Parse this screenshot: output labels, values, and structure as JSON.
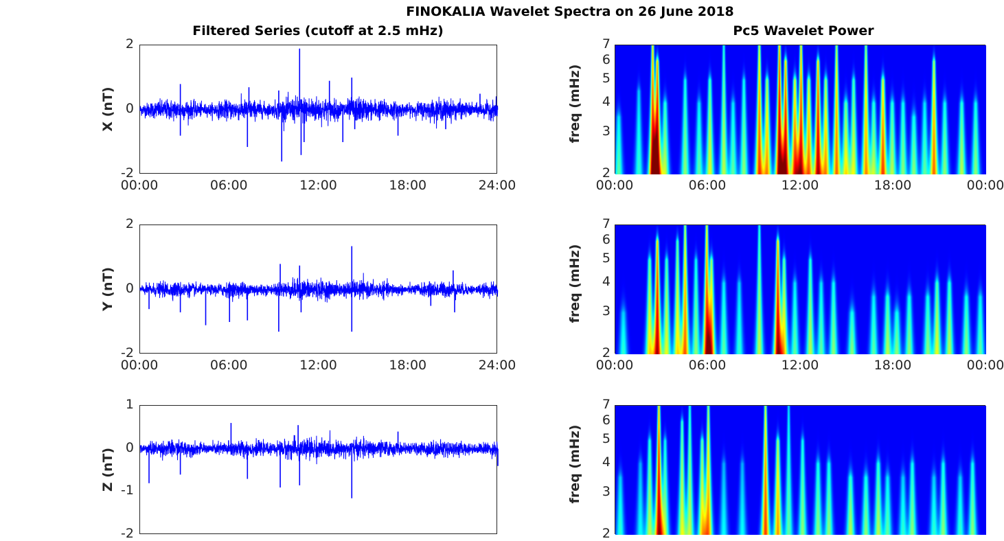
{
  "title": "FINOKALIA Wavelet Spectra on 26 June 2018",
  "chart_data": [
    {
      "type": "line",
      "title": "Filtered Series (cutoff at 2.5 mHz)",
      "ylabel": "X (nT)",
      "ylim": [
        -2,
        2
      ],
      "yticks": [
        "2",
        "0",
        "-2"
      ],
      "xlim": [
        0,
        24
      ],
      "xticks": [
        "00:00",
        "06:00",
        "12:00",
        "18:00",
        "24:00"
      ],
      "color": "#0000ff",
      "noise_amplitude_nT": 0.2,
      "spikes": [
        [
          2.7,
          0.8
        ],
        [
          2.7,
          -0.8
        ],
        [
          7.2,
          -1.15
        ],
        [
          7.3,
          0.7
        ],
        [
          9.3,
          0.6
        ],
        [
          9.5,
          -1.6
        ],
        [
          10.7,
          1.9
        ],
        [
          10.8,
          -1.4
        ],
        [
          11.0,
          -1.0
        ],
        [
          12.7,
          0.9
        ],
        [
          13.6,
          -1.0
        ],
        [
          14.2,
          1.0
        ],
        [
          14.4,
          -0.6
        ],
        [
          17.3,
          -0.8
        ],
        [
          20.5,
          -0.6
        ],
        [
          22.8,
          0.5
        ]
      ]
    },
    {
      "type": "line",
      "ylabel": "Y (nT)",
      "ylim": [
        -2,
        2
      ],
      "yticks": [
        "2",
        "0",
        "-2"
      ],
      "xlim": [
        0,
        24
      ],
      "xticks": [
        "00:00",
        "06:00",
        "12:00",
        "18:00",
        "24:00"
      ],
      "color": "#0000ff",
      "noise_amplitude_nT": 0.15,
      "spikes": [
        [
          0.6,
          -0.6
        ],
        [
          2.7,
          -0.7
        ],
        [
          4.4,
          -1.1
        ],
        [
          6.0,
          -1.0
        ],
        [
          7.2,
          -0.95
        ],
        [
          9.3,
          -1.3
        ],
        [
          9.4,
          0.8
        ],
        [
          10.7,
          0.75
        ],
        [
          10.8,
          -0.7
        ],
        [
          14.2,
          1.35
        ],
        [
          14.2,
          -1.3
        ],
        [
          19.5,
          -0.5
        ],
        [
          21.0,
          0.6
        ],
        [
          21.1,
          -0.7
        ]
      ]
    },
    {
      "type": "line",
      "ylabel": "Z (nT)",
      "ylim": [
        -2,
        1
      ],
      "yticks": [
        "1",
        "0",
        "-1",
        "-2"
      ],
      "xlim": [
        0,
        24
      ],
      "color": "#0000ff",
      "noise_amplitude_nT": 0.12,
      "spikes": [
        [
          0.6,
          -0.8
        ],
        [
          2.7,
          -0.6
        ],
        [
          6.1,
          0.6
        ],
        [
          7.2,
          -0.7
        ],
        [
          9.4,
          -0.9
        ],
        [
          10.6,
          0.55
        ],
        [
          10.7,
          -0.85
        ],
        [
          14.2,
          -1.15
        ],
        [
          17.3,
          0.4
        ],
        [
          24,
          -0.4
        ]
      ]
    },
    {
      "type": "heatmap",
      "title": "Pc5 Wavelet Power",
      "ylabel": "freq (mHz)",
      "yscale": "log",
      "ylim": [
        2,
        7
      ],
      "yticks": [
        "7",
        "6",
        "5",
        "4",
        "3",
        "2"
      ],
      "xlim": [
        0,
        24
      ],
      "xticks": [
        "00:00",
        "06:00",
        "12:00",
        "18:00",
        "00:00"
      ],
      "colormap": "jet",
      "events_hour_power_fmax": [
        [
          0.2,
          0.4,
          3.5
        ],
        [
          1.5,
          0.35,
          4.5
        ],
        [
          2.4,
          0.9,
          7
        ],
        [
          2.7,
          1.0,
          6
        ],
        [
          3.2,
          0.5,
          4
        ],
        [
          4.5,
          0.45,
          5
        ],
        [
          5.4,
          0.4,
          4
        ],
        [
          6.1,
          0.55,
          5
        ],
        [
          7.0,
          0.5,
          7
        ],
        [
          7.6,
          0.4,
          4
        ],
        [
          8.3,
          0.45,
          5
        ],
        [
          9.3,
          0.8,
          7
        ],
        [
          9.8,
          0.7,
          5
        ],
        [
          10.6,
          1.0,
          7
        ],
        [
          11.0,
          0.95,
          6
        ],
        [
          11.6,
          0.8,
          5
        ],
        [
          12.0,
          0.9,
          7
        ],
        [
          12.5,
          0.75,
          5
        ],
        [
          13.1,
          0.95,
          6
        ],
        [
          13.6,
          0.7,
          5
        ],
        [
          14.3,
          0.75,
          7
        ],
        [
          14.9,
          0.6,
          4
        ],
        [
          15.4,
          0.55,
          5
        ],
        [
          16.2,
          0.7,
          7
        ],
        [
          16.7,
          0.5,
          4
        ],
        [
          17.3,
          0.8,
          5
        ],
        [
          17.9,
          0.5,
          4
        ],
        [
          18.6,
          0.45,
          4
        ],
        [
          19.3,
          0.45,
          3.5
        ],
        [
          20.0,
          0.4,
          4
        ],
        [
          20.6,
          0.75,
          6
        ],
        [
          21.3,
          0.45,
          4
        ],
        [
          22.4,
          0.5,
          4
        ],
        [
          23.3,
          0.45,
          4
        ]
      ]
    },
    {
      "type": "heatmap",
      "ylabel": "freq (mHz)",
      "yscale": "log",
      "ylim": [
        2,
        7
      ],
      "yticks": [
        "7",
        "6",
        "5",
        "4",
        "3",
        "2"
      ],
      "xlim": [
        0,
        24
      ],
      "xticks": [
        "00:00",
        "06:00",
        "12:00",
        "18:00",
        "00:00"
      ],
      "colormap": "jet",
      "events_hour_power_fmax": [
        [
          0.5,
          0.35,
          3
        ],
        [
          2.2,
          0.6,
          5
        ],
        [
          2.7,
          0.95,
          6
        ],
        [
          3.3,
          0.55,
          5
        ],
        [
          4.0,
          0.6,
          6
        ],
        [
          4.5,
          0.75,
          7
        ],
        [
          5.2,
          0.45,
          5
        ],
        [
          5.9,
          0.85,
          7
        ],
        [
          6.2,
          0.7,
          5
        ],
        [
          7.0,
          0.4,
          4
        ],
        [
          8.0,
          0.35,
          4
        ],
        [
          9.3,
          0.5,
          7
        ],
        [
          10.5,
          0.95,
          6
        ],
        [
          10.9,
          0.6,
          5
        ],
        [
          11.6,
          0.4,
          4
        ],
        [
          12.6,
          0.5,
          5
        ],
        [
          13.3,
          0.4,
          4
        ],
        [
          14.1,
          0.45,
          4
        ],
        [
          15.3,
          0.45,
          3
        ],
        [
          16.7,
          0.4,
          3.5
        ],
        [
          17.6,
          0.5,
          3.5
        ],
        [
          18.2,
          0.45,
          3
        ],
        [
          19.0,
          0.45,
          3.5
        ],
        [
          20.2,
          0.45,
          3.5
        ],
        [
          20.8,
          0.55,
          4
        ],
        [
          21.6,
          0.5,
          4
        ],
        [
          22.7,
          0.45,
          3.5
        ],
        [
          23.6,
          0.4,
          3.5
        ]
      ]
    },
    {
      "type": "heatmap",
      "ylabel": "freq (mHz)",
      "yscale": "log",
      "ylim": [
        2,
        7
      ],
      "yticks": [
        "7",
        "6",
        "5",
        "4",
        "3",
        "2"
      ],
      "xlim": [
        0,
        24
      ],
      "colormap": "jet",
      "events_hour_power_fmax": [
        [
          0.3,
          0.35,
          3.5
        ],
        [
          1.6,
          0.3,
          4
        ],
        [
          2.2,
          0.5,
          5
        ],
        [
          2.8,
          0.95,
          7
        ],
        [
          3.2,
          0.45,
          5
        ],
        [
          4.3,
          0.55,
          6
        ],
        [
          4.8,
          0.5,
          7
        ],
        [
          5.6,
          0.6,
          5
        ],
        [
          6.0,
          0.7,
          7
        ],
        [
          7.0,
          0.3,
          4
        ],
        [
          8.2,
          0.3,
          4
        ],
        [
          9.7,
          0.8,
          7
        ],
        [
          10.5,
          0.7,
          5
        ],
        [
          11.2,
          0.4,
          7
        ],
        [
          12.1,
          0.45,
          5
        ],
        [
          13.1,
          0.45,
          4
        ],
        [
          13.8,
          0.45,
          4
        ],
        [
          15.2,
          0.5,
          3.5
        ],
        [
          16.2,
          0.45,
          3.5
        ],
        [
          17.0,
          0.5,
          4
        ],
        [
          17.6,
          0.4,
          3.5
        ],
        [
          18.6,
          0.35,
          3.5
        ],
        [
          19.2,
          0.45,
          4
        ],
        [
          20.6,
          0.35,
          3.5
        ],
        [
          21.2,
          0.45,
          4
        ],
        [
          22.3,
          0.35,
          3.5
        ],
        [
          23.1,
          0.45,
          4
        ]
      ]
    }
  ]
}
